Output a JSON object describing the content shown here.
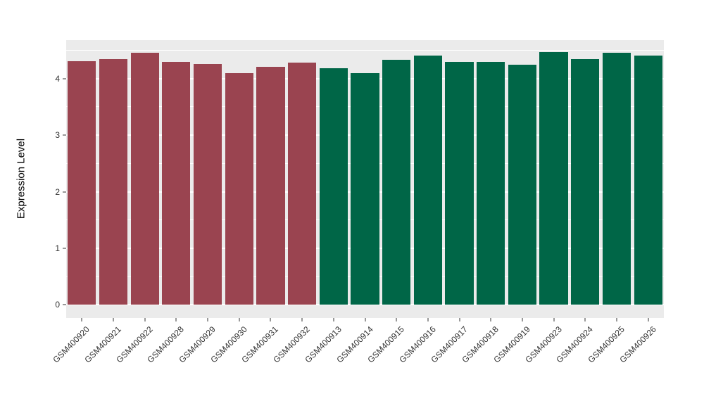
{
  "chart_data": {
    "type": "bar",
    "title": "",
    "xlabel": "",
    "ylabel": "Expression Level",
    "categories": [
      "GSM400920",
      "GSM400921",
      "GSM400922",
      "GSM400928",
      "GSM400929",
      "GSM400930",
      "GSM400931",
      "GSM400932",
      "GSM400913",
      "GSM400914",
      "GSM400915",
      "GSM400916",
      "GSM400917",
      "GSM400918",
      "GSM400919",
      "GSM400923",
      "GSM400924",
      "GSM400925",
      "GSM400926"
    ],
    "values": [
      4.31,
      4.34,
      4.46,
      4.3,
      4.26,
      4.1,
      4.21,
      4.28,
      4.18,
      4.09,
      4.33,
      4.41,
      4.3,
      4.3,
      4.25,
      4.47,
      4.34,
      4.46,
      4.41
    ],
    "groups": [
      "maroon",
      "maroon",
      "maroon",
      "maroon",
      "maroon",
      "maroon",
      "maroon",
      "maroon",
      "green",
      "green",
      "green",
      "green",
      "green",
      "green",
      "green",
      "green",
      "green",
      "green",
      "green"
    ],
    "group_colors": {
      "maroon": "#9A4450",
      "green": "#006647"
    },
    "ylim": [
      0,
      4.68
    ],
    "baseline_extension": 0.23,
    "yticks": [
      0,
      1,
      2,
      3,
      4
    ],
    "yticks_minor": [
      0.5,
      1.5,
      2.5,
      3.5,
      4.5
    ],
    "grid": true,
    "legend_position": "none",
    "panel_background": "#EBEBEB",
    "gridline_color": "#FFFFFF",
    "axis_text_color": "#333333",
    "bar_width_fraction": 0.9,
    "x_label_angle": -45
  }
}
